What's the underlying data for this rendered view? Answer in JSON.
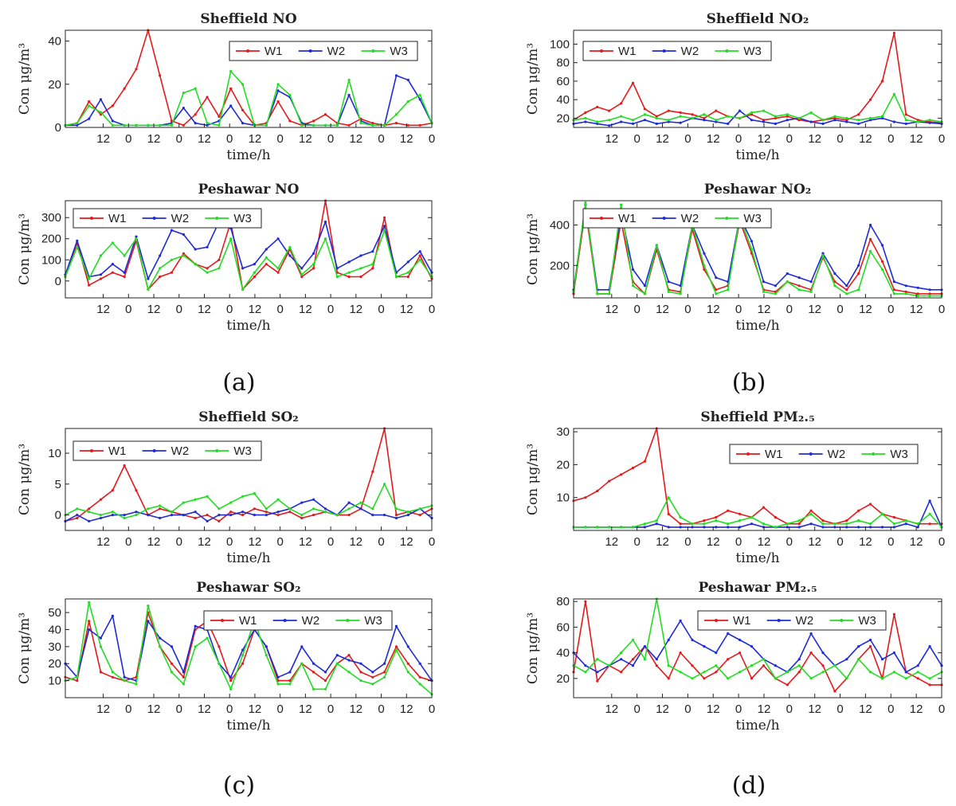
{
  "series_colors": {
    "W1": "#e41a1c",
    "W2": "#1f2bd6",
    "W3": "#22dd22"
  },
  "panel_labels": [
    "(a)",
    "(b)",
    "(c)",
    "(d)"
  ],
  "chart_data": [
    {
      "type": "line",
      "title": "Sheffield NO",
      "xlabel": "time/h",
      "ylabel": "Con μg/m³",
      "x_tick_labels": [
        "12",
        "0",
        "12",
        "0",
        "12",
        "0",
        "12",
        "0",
        "12",
        "0",
        "12",
        "0",
        "12",
        "0"
      ],
      "ylim": [
        0,
        45
      ],
      "yticks": [
        0,
        20,
        40
      ],
      "legend": "top-right",
      "series": [
        {
          "name": "W1",
          "values": [
            1,
            2,
            12,
            6,
            10,
            18,
            27,
            45,
            24,
            3,
            1,
            6,
            14,
            5,
            18,
            8,
            1,
            2,
            12,
            3,
            1,
            3,
            6,
            2,
            1,
            4,
            2,
            1,
            2,
            1,
            1,
            2
          ]
        },
        {
          "name": "W2",
          "values": [
            1,
            1,
            4,
            13,
            3,
            1,
            1,
            1,
            1,
            2,
            9,
            2,
            1,
            3,
            10,
            2,
            1,
            1,
            17,
            14,
            2,
            1,
            1,
            1,
            15,
            3,
            1,
            1,
            24,
            22,
            13,
            2
          ]
        },
        {
          "name": "W3",
          "values": [
            1,
            2,
            10,
            7,
            1,
            1,
            1,
            1,
            1,
            1,
            16,
            18,
            2,
            1,
            26,
            20,
            1,
            1,
            20,
            15,
            1,
            1,
            1,
            1,
            22,
            2,
            1,
            1,
            6,
            12,
            15,
            2
          ]
        }
      ]
    },
    {
      "type": "line",
      "title": "Sheffield NO₂",
      "xlabel": "time/h",
      "ylabel": "Con μg/m³",
      "x_tick_labels": [
        "12",
        "0",
        "12",
        "0",
        "12",
        "0",
        "12",
        "0",
        "12",
        "0",
        "12",
        "0",
        "12",
        "0"
      ],
      "ylim": [
        10,
        115
      ],
      "yticks": [
        20,
        40,
        60,
        80,
        100
      ],
      "legend": "top-left",
      "series": [
        {
          "name": "W1",
          "values": [
            18,
            26,
            32,
            28,
            36,
            58,
            30,
            22,
            28,
            26,
            24,
            20,
            28,
            22,
            20,
            24,
            18,
            20,
            22,
            18,
            16,
            18,
            20,
            18,
            24,
            40,
            60,
            112,
            24,
            18,
            16,
            15
          ]
        },
        {
          "name": "W2",
          "values": [
            14,
            16,
            14,
            12,
            16,
            14,
            18,
            14,
            16,
            15,
            20,
            18,
            16,
            14,
            28,
            18,
            16,
            14,
            18,
            20,
            16,
            14,
            18,
            16,
            14,
            18,
            20,
            16,
            14,
            16,
            15,
            14
          ]
        },
        {
          "name": "W3",
          "values": [
            18,
            20,
            16,
            18,
            22,
            18,
            24,
            20,
            18,
            22,
            20,
            24,
            18,
            22,
            20,
            26,
            28,
            22,
            24,
            20,
            26,
            18,
            22,
            20,
            18,
            20,
            22,
            46,
            18,
            16,
            18,
            16
          ]
        }
      ]
    },
    {
      "type": "line",
      "title": "Peshawar NO",
      "xlabel": "time/h",
      "ylabel": "Con μg/m³",
      "x_tick_labels": [
        "12",
        "0",
        "12",
        "0",
        "12",
        "0",
        "12",
        "0",
        "12",
        "0",
        "12",
        "0",
        "12",
        "0"
      ],
      "ylim": [
        -80,
        380
      ],
      "yticks": [
        0,
        100,
        200,
        300
      ],
      "legend": "top-left",
      "series": [
        {
          "name": "W1",
          "values": [
            20,
            180,
            -20,
            10,
            40,
            20,
            190,
            -40,
            20,
            40,
            130,
            80,
            60,
            100,
            280,
            -40,
            20,
            80,
            40,
            150,
            20,
            60,
            380,
            40,
            20,
            20,
            60,
            300,
            20,
            20,
            120,
            10
          ]
        },
        {
          "name": "W2",
          "values": [
            30,
            190,
            20,
            30,
            80,
            40,
            210,
            10,
            120,
            240,
            220,
            150,
            160,
            280,
            250,
            60,
            80,
            150,
            200,
            120,
            60,
            130,
            280,
            60,
            90,
            120,
            140,
            260,
            40,
            90,
            140,
            40
          ]
        },
        {
          "name": "W3",
          "values": [
            20,
            160,
            10,
            120,
            180,
            120,
            200,
            -40,
            60,
            100,
            120,
            80,
            40,
            60,
            200,
            -40,
            40,
            110,
            60,
            160,
            30,
            80,
            200,
            20,
            40,
            60,
            80,
            240,
            20,
            40,
            100,
            20
          ]
        }
      ]
    },
    {
      "type": "line",
      "title": "Peshawar NO₂",
      "xlabel": "time/h",
      "ylabel": "Con μg/m³",
      "x_tick_labels": [
        "12",
        "0",
        "12",
        "0",
        "12",
        "0",
        "12",
        "0",
        "12",
        "0",
        "12",
        "0",
        "12",
        "0"
      ],
      "ylim": [
        40,
        520
      ],
      "yticks": [
        200,
        400
      ],
      "legend": "top-left",
      "series": [
        {
          "name": "W1",
          "values": [
            60,
            480,
            60,
            60,
            420,
            120,
            60,
            280,
            80,
            70,
            380,
            180,
            80,
            100,
            420,
            260,
            80,
            70,
            120,
            100,
            80,
            240,
            120,
            80,
            160,
            330,
            220,
            80,
            70,
            60,
            60,
            60
          ]
        },
        {
          "name": "W2",
          "values": [
            80,
            500,
            80,
            80,
            460,
            180,
            100,
            300,
            120,
            100,
            400,
            260,
            140,
            120,
            440,
            320,
            120,
            100,
            160,
            140,
            120,
            260,
            160,
            100,
            200,
            400,
            300,
            120,
            100,
            90,
            80,
            80
          ]
        },
        {
          "name": "W3",
          "values": [
            70,
            510,
            60,
            60,
            500,
            100,
            60,
            300,
            70,
            60,
            400,
            200,
            60,
            80,
            440,
            280,
            70,
            60,
            120,
            80,
            70,
            250,
            100,
            60,
            80,
            270,
            180,
            60,
            60,
            50,
            50,
            50
          ]
        }
      ]
    },
    {
      "type": "line",
      "title": "Sheffield SO₂",
      "xlabel": "time/h",
      "ylabel": "Con μg/m³",
      "x_tick_labels": [
        "12",
        "0",
        "12",
        "0",
        "12",
        "0",
        "12",
        "0",
        "12",
        "0",
        "12",
        "0",
        "12",
        "0"
      ],
      "ylim": [
        -2.5,
        14
      ],
      "yticks": [
        0,
        5,
        10
      ],
      "legend": "top-left",
      "series": [
        {
          "name": "W1",
          "values": [
            -1,
            -0.5,
            1,
            2.5,
            4,
            8,
            4,
            0,
            1,
            0.5,
            0,
            -0.5,
            0,
            -1,
            0.5,
            0,
            1,
            0.5,
            0,
            0.5,
            -0.5,
            0,
            0.5,
            0,
            0,
            1,
            7,
            14,
            0,
            0.5,
            0,
            1
          ]
        },
        {
          "name": "W2",
          "values": [
            -1,
            0,
            -1,
            -0.5,
            0,
            0,
            0.5,
            0,
            -0.5,
            0,
            0,
            0.5,
            -1,
            0,
            0,
            0.5,
            0,
            0,
            0.5,
            1,
            2,
            2.5,
            1,
            0,
            2,
            1,
            0,
            0,
            -0.5,
            0,
            1,
            -0.5
          ]
        },
        {
          "name": "W3",
          "values": [
            0,
            1,
            0.5,
            0,
            0.5,
            -0.5,
            0,
            1,
            1.5,
            0.5,
            2,
            2.5,
            3,
            1,
            2,
            3,
            3.5,
            1,
            2.5,
            1,
            0,
            1,
            0.5,
            0,
            1,
            2,
            1,
            5,
            1,
            0.5,
            1,
            1.5
          ]
        }
      ]
    },
    {
      "type": "line",
      "title": "Sheffield PM₂.₅",
      "xlabel": "time/h",
      "ylabel": "Con μg/m³",
      "x_tick_labels": [
        "12",
        "0",
        "12",
        "0",
        "12",
        "0",
        "12",
        "0",
        "12",
        "0",
        "12",
        "0",
        "12",
        "0"
      ],
      "ylim": [
        0,
        31
      ],
      "yticks": [
        10,
        20,
        30
      ],
      "legend": "top-right",
      "series": [
        {
          "name": "W1",
          "values": [
            9,
            10,
            12,
            15,
            17,
            19,
            21,
            31,
            5,
            2,
            2,
            3,
            4,
            6,
            5,
            4,
            7,
            4,
            2,
            2,
            6,
            3,
            2,
            3,
            6,
            8,
            5,
            4,
            3,
            2,
            2,
            2
          ]
        },
        {
          "name": "W2",
          "values": [
            1,
            1,
            1,
            1,
            1,
            1,
            1,
            2,
            1,
            1,
            1,
            1,
            1,
            1,
            1,
            2,
            1,
            1,
            1,
            1,
            2,
            1,
            1,
            1,
            1,
            1,
            1,
            1,
            2,
            1,
            9,
            1
          ]
        },
        {
          "name": "W3",
          "values": [
            1,
            1,
            1,
            1,
            1,
            1,
            2,
            3,
            10,
            4,
            2,
            2,
            3,
            2,
            3,
            4,
            2,
            1,
            2,
            3,
            5,
            2,
            2,
            2,
            3,
            2,
            5,
            2,
            3,
            2,
            5,
            1
          ]
        }
      ]
    },
    {
      "type": "line",
      "title": "Peshawar SO₂",
      "xlabel": "time/h",
      "ylabel": "Con μg/m³",
      "x_tick_labels": [
        "12",
        "0",
        "12",
        "0",
        "12",
        "0",
        "12",
        "0",
        "12",
        "0",
        "12",
        "0",
        "12",
        "0"
      ],
      "ylim": [
        0,
        58
      ],
      "yticks": [
        10,
        20,
        30,
        40,
        50
      ],
      "legend": "top-right",
      "series": [
        {
          "name": "W1",
          "values": [
            12,
            10,
            45,
            15,
            12,
            10,
            12,
            50,
            30,
            20,
            12,
            40,
            45,
            30,
            10,
            20,
            40,
            30,
            10,
            10,
            20,
            15,
            10,
            20,
            25,
            15,
            12,
            15,
            30,
            20,
            12,
            10
          ]
        },
        {
          "name": "W2",
          "values": [
            20,
            12,
            40,
            35,
            48,
            12,
            10,
            45,
            35,
            30,
            15,
            42,
            40,
            20,
            12,
            28,
            40,
            30,
            12,
            15,
            30,
            20,
            15,
            25,
            22,
            20,
            15,
            20,
            42,
            30,
            20,
            10
          ]
        },
        {
          "name": "W3",
          "values": [
            10,
            12,
            56,
            30,
            15,
            10,
            8,
            54,
            30,
            15,
            8,
            30,
            35,
            20,
            5,
            25,
            45,
            25,
            8,
            8,
            20,
            5,
            5,
            20,
            15,
            10,
            8,
            12,
            28,
            15,
            8,
            2
          ]
        }
      ]
    },
    {
      "type": "line",
      "title": "Peshawar PM₂.₅",
      "xlabel": "time/h",
      "ylabel": "Con μg/m³",
      "x_tick_labels": [
        "12",
        "0",
        "12",
        "0",
        "12",
        "0",
        "12",
        "0",
        "12",
        "0",
        "12",
        "0",
        "12",
        "0"
      ],
      "ylim": [
        5,
        82
      ],
      "yticks": [
        20,
        40,
        60,
        80
      ],
      "legend": "top-right",
      "series": [
        {
          "name": "W1",
          "values": [
            25,
            80,
            18,
            30,
            25,
            35,
            45,
            30,
            20,
            40,
            30,
            20,
            25,
            35,
            40,
            20,
            30,
            20,
            15,
            25,
            40,
            30,
            10,
            20,
            35,
            45,
            20,
            70,
            25,
            20,
            15,
            15
          ]
        },
        {
          "name": "W2",
          "values": [
            40,
            30,
            25,
            30,
            35,
            30,
            45,
            35,
            50,
            65,
            50,
            45,
            40,
            55,
            50,
            45,
            35,
            30,
            25,
            35,
            55,
            40,
            30,
            35,
            45,
            50,
            35,
            40,
            25,
            30,
            45,
            30
          ]
        },
        {
          "name": "W3",
          "values": [
            30,
            25,
            35,
            30,
            40,
            50,
            35,
            82,
            30,
            25,
            20,
            25,
            30,
            20,
            25,
            30,
            35,
            20,
            25,
            30,
            20,
            25,
            30,
            20,
            35,
            25,
            20,
            25,
            20,
            25,
            20,
            25
          ]
        }
      ]
    }
  ]
}
